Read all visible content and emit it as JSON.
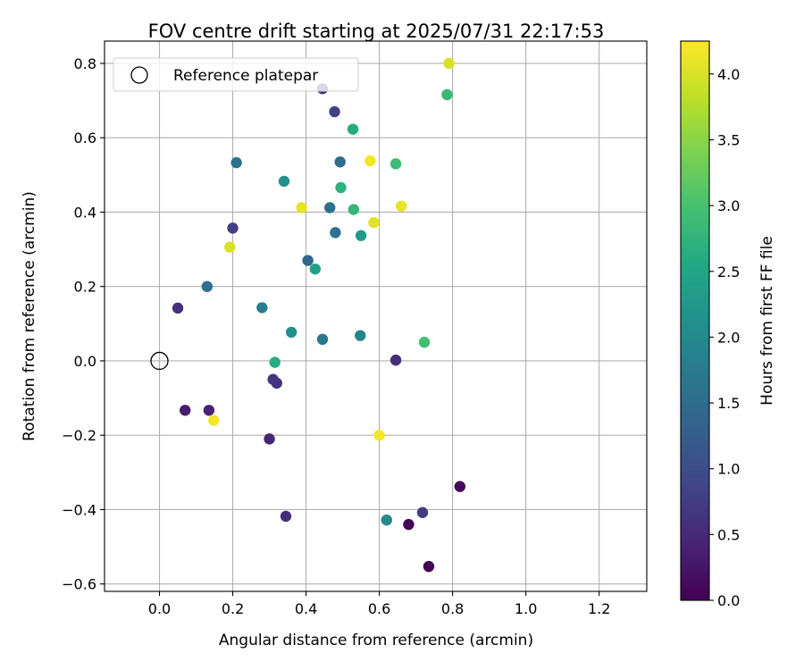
{
  "chart_data": {
    "type": "scatter",
    "title": "FOV centre drift starting at 2025/07/31 22:17:53",
    "xlabel": "Angular distance from reference (arcmin)",
    "ylabel": "Rotation from reference (arcmin)",
    "xlim": [
      -0.15,
      1.33
    ],
    "ylim": [
      -0.62,
      0.86
    ],
    "xticks": [
      0.0,
      0.2,
      0.4,
      0.6,
      0.8,
      1.0,
      1.2
    ],
    "xtick_labels": [
      "0.0",
      "0.2",
      "0.4",
      "0.6",
      "0.8",
      "1.0",
      "1.2"
    ],
    "yticks": [
      -0.6,
      -0.4,
      -0.2,
      0.0,
      0.2,
      0.4,
      0.6,
      0.8
    ],
    "ytick_labels": [
      "−0.6",
      "−0.4",
      "−0.2",
      "0.0",
      "0.2",
      "0.4",
      "0.6",
      "0.8"
    ],
    "grid": true,
    "legend": {
      "placement": "top-left",
      "entries": [
        "Reference platepar"
      ]
    },
    "reference_point": {
      "x": 0.0,
      "y": 0.0
    },
    "colorbar": {
      "label": "Hours from first FF file",
      "colormap": "viridis",
      "range": [
        0.0,
        4.25
      ],
      "ticks": [
        0.0,
        0.5,
        1.0,
        1.5,
        2.0,
        2.5,
        3.0,
        3.5,
        4.0
      ],
      "tick_labels": [
        "0.0",
        "0.5",
        "1.0",
        "1.5",
        "2.0",
        "2.5",
        "3.0",
        "3.5",
        "4.0"
      ]
    },
    "points": [
      {
        "x": 0.735,
        "y": -0.553,
        "hours": 0.0
      },
      {
        "x": 0.68,
        "y": -0.44,
        "hours": 0.05
      },
      {
        "x": 0.82,
        "y": -0.338,
        "hours": 0.1
      },
      {
        "x": 0.07,
        "y": -0.133,
        "hours": 0.35
      },
      {
        "x": 0.135,
        "y": -0.133,
        "hours": 0.4
      },
      {
        "x": 0.3,
        "y": -0.21,
        "hours": 0.45
      },
      {
        "x": 0.345,
        "y": -0.418,
        "hours": 0.55
      },
      {
        "x": 0.32,
        "y": -0.06,
        "hours": 0.6
      },
      {
        "x": 0.31,
        "y": -0.05,
        "hours": 0.65
      },
      {
        "x": 0.645,
        "y": 0.002,
        "hours": 0.55
      },
      {
        "x": 0.05,
        "y": 0.142,
        "hours": 0.6
      },
      {
        "x": 0.718,
        "y": -0.408,
        "hours": 0.75
      },
      {
        "x": 0.445,
        "y": 0.732,
        "hours": 0.7
      },
      {
        "x": 0.478,
        "y": 0.67,
        "hours": 0.8
      },
      {
        "x": 0.2,
        "y": 0.357,
        "hours": 0.8
      },
      {
        "x": 0.13,
        "y": 0.2,
        "hours": 1.55
      },
      {
        "x": 0.21,
        "y": 0.533,
        "hours": 1.6
      },
      {
        "x": 0.493,
        "y": 0.535,
        "hours": 1.5
      },
      {
        "x": 0.405,
        "y": 0.27,
        "hours": 1.4
      },
      {
        "x": 0.465,
        "y": 0.412,
        "hours": 1.55
      },
      {
        "x": 0.48,
        "y": 0.345,
        "hours": 1.6
      },
      {
        "x": 0.28,
        "y": 0.143,
        "hours": 1.8
      },
      {
        "x": 0.445,
        "y": 0.058,
        "hours": 1.7
      },
      {
        "x": 0.548,
        "y": 0.068,
        "hours": 1.9
      },
      {
        "x": 0.36,
        "y": 0.077,
        "hours": 2.1
      },
      {
        "x": 0.62,
        "y": -0.428,
        "hours": 2.0
      },
      {
        "x": 0.34,
        "y": 0.483,
        "hours": 2.1
      },
      {
        "x": 0.55,
        "y": 0.337,
        "hours": 2.3
      },
      {
        "x": 0.425,
        "y": 0.247,
        "hours": 2.4
      },
      {
        "x": 0.315,
        "y": -0.004,
        "hours": 2.6
      },
      {
        "x": 0.528,
        "y": 0.623,
        "hours": 2.6
      },
      {
        "x": 0.495,
        "y": 0.466,
        "hours": 2.7
      },
      {
        "x": 0.53,
        "y": 0.407,
        "hours": 2.8
      },
      {
        "x": 0.645,
        "y": 0.53,
        "hours": 2.9
      },
      {
        "x": 0.785,
        "y": 0.716,
        "hours": 2.85
      },
      {
        "x": 0.723,
        "y": 0.05,
        "hours": 2.95
      },
      {
        "x": 0.575,
        "y": 0.538,
        "hours": 4.2
      },
      {
        "x": 0.388,
        "y": 0.412,
        "hours": 4.1
      },
      {
        "x": 0.585,
        "y": 0.372,
        "hours": 4.05
      },
      {
        "x": 0.66,
        "y": 0.416,
        "hours": 4.1
      },
      {
        "x": 0.79,
        "y": 0.8,
        "hours": 4.0
      },
      {
        "x": 0.192,
        "y": 0.306,
        "hours": 4.0
      },
      {
        "x": 0.148,
        "y": -0.16,
        "hours": 4.2
      },
      {
        "x": 0.6,
        "y": -0.2,
        "hours": 4.2
      }
    ]
  }
}
